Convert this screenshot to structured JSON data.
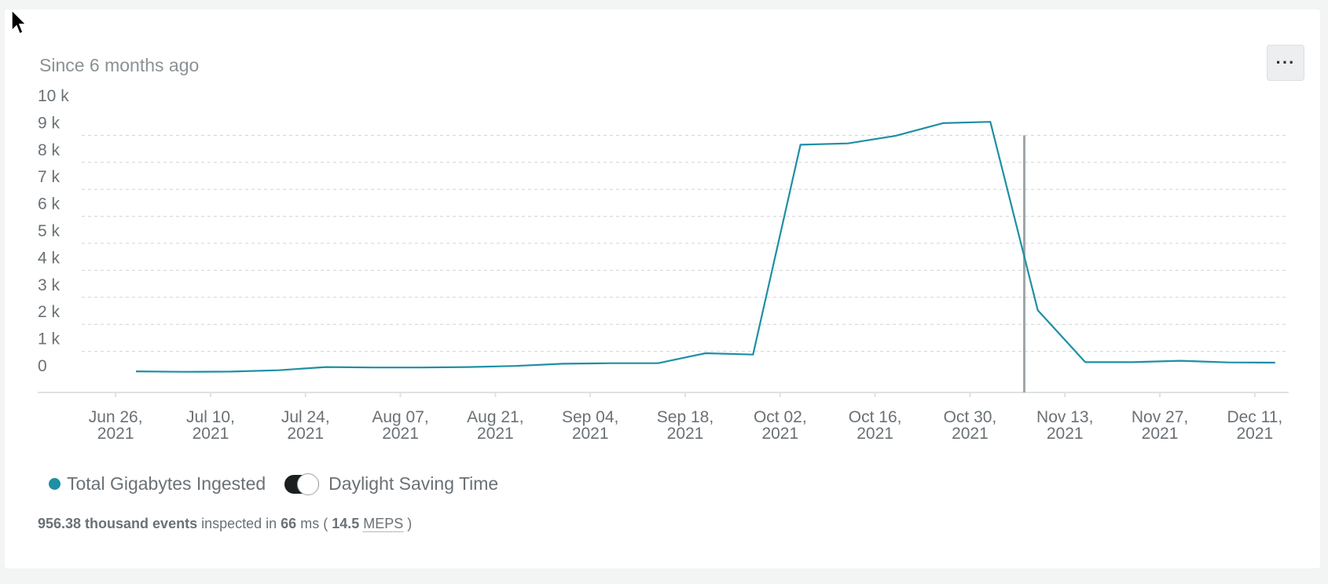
{
  "header": {
    "time_range": "Since 6 months ago",
    "more_label": "···"
  },
  "chart_data": {
    "type": "line",
    "ylim": [
      0,
      10000
    ],
    "yticks": [
      {
        "v": 0,
        "label": "0"
      },
      {
        "v": 1000,
        "label": "1 k"
      },
      {
        "v": 2000,
        "label": "2 k"
      },
      {
        "v": 3000,
        "label": "3 k"
      },
      {
        "v": 4000,
        "label": "4 k"
      },
      {
        "v": 5000,
        "label": "5 k"
      },
      {
        "v": 6000,
        "label": "6 k"
      },
      {
        "v": 7000,
        "label": "7 k"
      },
      {
        "v": 8000,
        "label": "8 k"
      },
      {
        "v": 9000,
        "label": "9 k"
      },
      {
        "v": 10000,
        "label": "10 k"
      }
    ],
    "xlim": [
      "2021-06-21",
      "2021-12-16"
    ],
    "xticks": [
      {
        "date": "2021-06-26",
        "line1": "Jun 26,",
        "line2": "2021"
      },
      {
        "date": "2021-07-10",
        "line1": "Jul 10,",
        "line2": "2021"
      },
      {
        "date": "2021-07-24",
        "line1": "Jul 24,",
        "line2": "2021"
      },
      {
        "date": "2021-08-07",
        "line1": "Aug 07,",
        "line2": "2021"
      },
      {
        "date": "2021-08-21",
        "line1": "Aug 21,",
        "line2": "2021"
      },
      {
        "date": "2021-09-04",
        "line1": "Sep 04,",
        "line2": "2021"
      },
      {
        "date": "2021-09-18",
        "line1": "Sep 18,",
        "line2": "2021"
      },
      {
        "date": "2021-10-02",
        "line1": "Oct 02,",
        "line2": "2021"
      },
      {
        "date": "2021-10-16",
        "line1": "Oct 16,",
        "line2": "2021"
      },
      {
        "date": "2021-10-30",
        "line1": "Oct 30,",
        "line2": "2021"
      },
      {
        "date": "2021-11-13",
        "line1": "Nov 13,",
        "line2": "2021"
      },
      {
        "date": "2021-11-27",
        "line1": "Nov 27,",
        "line2": "2021"
      },
      {
        "date": "2021-12-11",
        "line1": "Dec 11,",
        "line2": "2021"
      }
    ],
    "marker_date": "2021-11-07",
    "series": [
      {
        "name": "Total Gigabytes Ingested",
        "color": "#1e8fa5",
        "points": [
          {
            "x": "2021-06-29",
            "y": 260
          },
          {
            "x": "2021-07-06",
            "y": 240
          },
          {
            "x": "2021-07-13",
            "y": 250
          },
          {
            "x": "2021-07-20",
            "y": 300
          },
          {
            "x": "2021-07-27",
            "y": 420
          },
          {
            "x": "2021-08-03",
            "y": 400
          },
          {
            "x": "2021-08-10",
            "y": 400
          },
          {
            "x": "2021-08-17",
            "y": 420
          },
          {
            "x": "2021-08-24",
            "y": 460
          },
          {
            "x": "2021-08-31",
            "y": 540
          },
          {
            "x": "2021-09-07",
            "y": 560
          },
          {
            "x": "2021-09-14",
            "y": 560
          },
          {
            "x": "2021-09-21",
            "y": 930
          },
          {
            "x": "2021-09-28",
            "y": 880
          },
          {
            "x": "2021-10-05",
            "y": 8650
          },
          {
            "x": "2021-10-12",
            "y": 8700
          },
          {
            "x": "2021-10-19",
            "y": 8980
          },
          {
            "x": "2021-10-26",
            "y": 9450
          },
          {
            "x": "2021-11-02",
            "y": 9500
          },
          {
            "x": "2021-11-09",
            "y": 2520
          },
          {
            "x": "2021-11-16",
            "y": 600
          },
          {
            "x": "2021-11-23",
            "y": 600
          },
          {
            "x": "2021-11-30",
            "y": 650
          },
          {
            "x": "2021-12-07",
            "y": 590
          },
          {
            "x": "2021-12-14",
            "y": 580
          }
        ]
      }
    ]
  },
  "legend": {
    "series_label": "Total Gigabytes Ingested",
    "dst_label": "Daylight Saving Time"
  },
  "footer": {
    "events": "956.38 thousand events",
    "inspected_in": " inspected in ",
    "ms_value": "66",
    "ms_unit": " ms ( ",
    "meps_value": "14.5",
    "meps_label": "MEPS",
    "close_paren": " )"
  }
}
